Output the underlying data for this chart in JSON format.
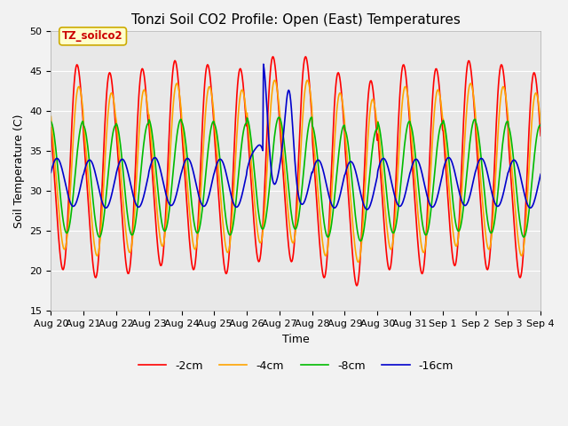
{
  "title": "Tonzi Soil CO2 Profile: Open (East) Temperatures",
  "xlabel": "Time",
  "ylabel": "Soil Temperature (C)",
  "ylim": [
    15,
    50
  ],
  "xlim": [
    0,
    15
  ],
  "annotation": "TZ_soilco2",
  "legend_labels": [
    "-2cm",
    "-4cm",
    "-8cm",
    "-16cm"
  ],
  "legend_colors": [
    "#ff0000",
    "#ffa500",
    "#00bb00",
    "#0000cc"
  ],
  "xtick_labels": [
    "Aug 20",
    "Aug 21",
    "Aug 22",
    "Aug 23",
    "Aug 24",
    "Aug 25",
    "Aug 26",
    "Aug 27",
    "Aug 28",
    "Aug 29",
    "Aug 30",
    "Aug 31",
    "Sep 1",
    "Sep 2",
    "Sep 3",
    "Sep 4"
  ],
  "ytick_labels": [
    "15",
    "20",
    "25",
    "30",
    "35",
    "40",
    "45",
    "50"
  ],
  "ytick_vals": [
    15,
    20,
    25,
    30,
    35,
    40,
    45,
    50
  ],
  "background_color": "#e8e8e8",
  "title_fontsize": 11,
  "label_fontsize": 9,
  "tick_fontsize": 8
}
